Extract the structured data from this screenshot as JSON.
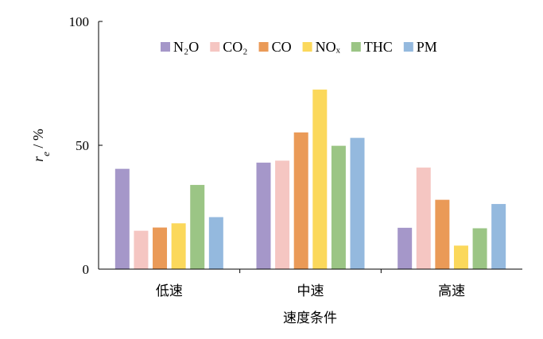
{
  "chart_data": {
    "type": "bar",
    "title": "",
    "xlabel": "速度条件",
    "ylabel": "r_e / %",
    "ylabel_var": "r",
    "ylabel_sub": "e",
    "ylabel_unit": " / %",
    "ylim": [
      0,
      100
    ],
    "yticks": [
      0,
      50,
      100
    ],
    "grid": false,
    "legend_position": "top",
    "categories": [
      "低速",
      "中速",
      "高速"
    ],
    "series": [
      {
        "name": "N₂O",
        "color": "#a597c9",
        "values": [
          40.5,
          43,
          16.7
        ]
      },
      {
        "name": "CO₂",
        "color": "#f5c6c2",
        "values": [
          15.5,
          43.8,
          41
        ]
      },
      {
        "name": "CO",
        "color": "#ea9a57",
        "values": [
          16.8,
          55.2,
          28
        ]
      },
      {
        "name": "NOₓ",
        "color": "#fbd85b",
        "values": [
          18.5,
          72.5,
          9.5
        ]
      },
      {
        "name": "THC",
        "color": "#9bc585",
        "values": [
          34,
          49.8,
          16.5
        ]
      },
      {
        "name": "PM",
        "color": "#94b9de",
        "values": [
          21,
          53,
          26.3
        ]
      }
    ]
  }
}
